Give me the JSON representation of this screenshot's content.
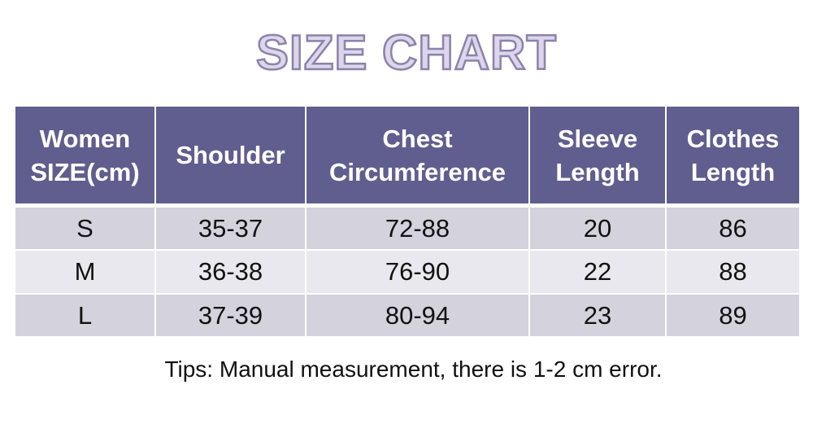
{
  "title": "SIZE CHART",
  "table": {
    "header": [
      [
        "Women",
        "SIZE(cm)"
      ],
      [
        "Shoulder"
      ],
      [
        "Chest",
        "Circumference"
      ],
      [
        "Sleeve",
        "Length"
      ],
      [
        "Clothes",
        "Length"
      ]
    ],
    "rows": [
      [
        "S",
        "35-37",
        "72-88",
        20,
        86
      ],
      [
        "M",
        "36-38",
        "76-90",
        22,
        88
      ],
      [
        "L",
        "37-39",
        "80-94",
        23,
        89
      ]
    ]
  },
  "tips": "Tips: Manual measurement, there is 1-2 cm error."
}
